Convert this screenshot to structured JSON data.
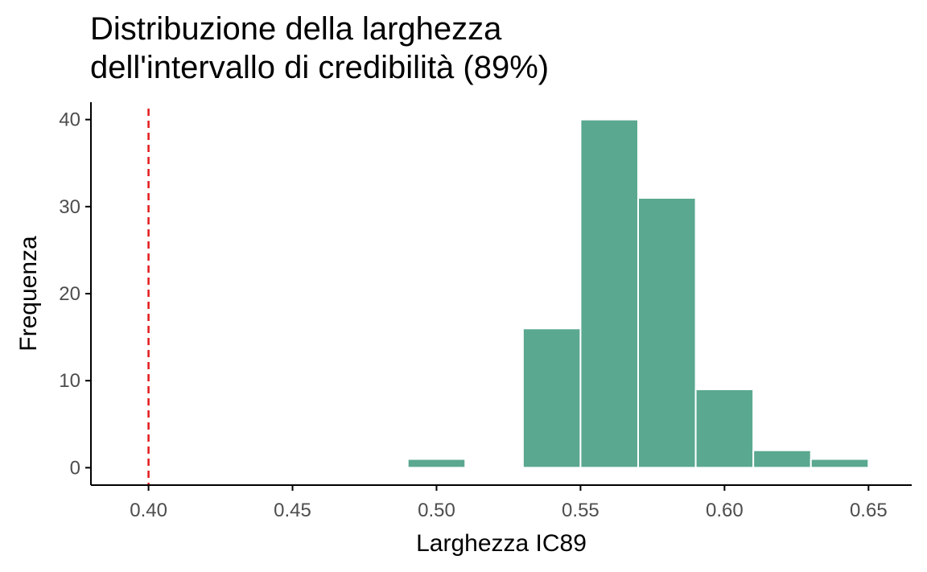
{
  "chart_data": {
    "type": "bar",
    "title_lines": [
      "Distribuzione della larghezza",
      "dell'intervallo di credibilità (89%)"
    ],
    "xlabel": "Larghezza IC89",
    "ylabel": "Frequenza",
    "bin_width": 0.02,
    "bins": [
      {
        "start": 0.49,
        "end": 0.51,
        "count": 1
      },
      {
        "start": 0.51,
        "end": 0.53,
        "count": 0
      },
      {
        "start": 0.53,
        "end": 0.55,
        "count": 16
      },
      {
        "start": 0.55,
        "end": 0.57,
        "count": 40
      },
      {
        "start": 0.57,
        "end": 0.59,
        "count": 31
      },
      {
        "start": 0.59,
        "end": 0.61,
        "count": 9
      },
      {
        "start": 0.61,
        "end": 0.63,
        "count": 2
      },
      {
        "start": 0.63,
        "end": 0.65,
        "count": 1
      }
    ],
    "xlim": [
      0.38,
      0.665
    ],
    "ylim": [
      -2,
      42
    ],
    "x_ticks": [
      0.4,
      0.45,
      0.5,
      0.55,
      0.6,
      0.65
    ],
    "x_tick_labels": [
      "0.40",
      "0.45",
      "0.50",
      "0.55",
      "0.60",
      "0.65"
    ],
    "y_ticks": [
      0,
      10,
      20,
      30,
      40
    ],
    "y_tick_labels": [
      "0",
      "10",
      "20",
      "30",
      "40"
    ],
    "reference_line": {
      "x": 0.4,
      "style": "dashed",
      "color": "#e31a1c"
    },
    "bar_color": "#5aa890",
    "bar_edge_color": "#ffffff",
    "grid": false
  }
}
